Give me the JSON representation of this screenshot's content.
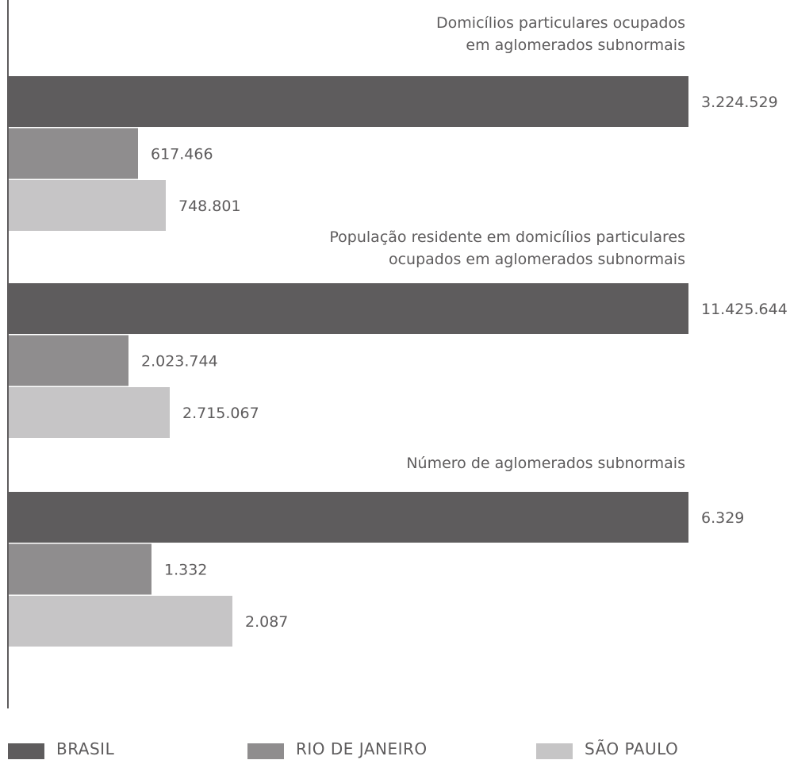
{
  "chart_data": {
    "type": "bar",
    "orientation": "horizontal",
    "series": [
      {
        "name": "BRASIL",
        "color": "#5e5c5d"
      },
      {
        "name": "RIO DE JANEIRO",
        "color": "#8f8d8e"
      },
      {
        "name": "SÃO PAULO",
        "color": "#c6c5c6"
      }
    ],
    "groups": [
      {
        "title_lines": [
          "Domicílios particulares ocupados",
          "em aglomerados subnormais"
        ],
        "values": [
          3224529,
          617466,
          748801
        ],
        "labels": [
          "3.224.529",
          "617.466",
          "748.801"
        ]
      },
      {
        "title_lines": [
          "População residente em domicílios particulares",
          "ocupados em aglomerados subnormais"
        ],
        "values": [
          11425644,
          2023744,
          2715067
        ],
        "labels": [
          "11.425.644",
          "2.023.744",
          "2.715.067"
        ]
      },
      {
        "title_lines": [
          "Número de aglomerados subnormais"
        ],
        "values": [
          6329,
          1332,
          2087
        ],
        "labels": [
          "6.329",
          "1.332",
          "2.087"
        ]
      }
    ],
    "legend_position": "bottom"
  }
}
